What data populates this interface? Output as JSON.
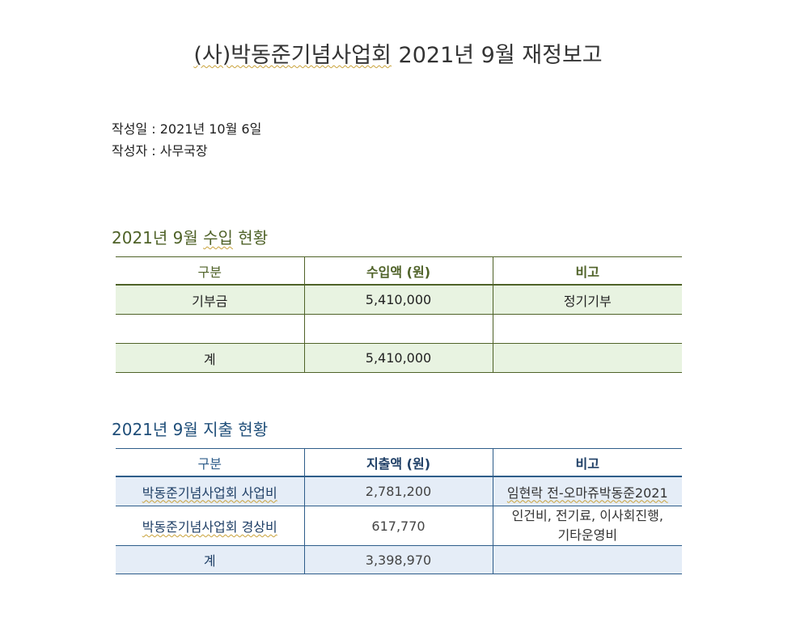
{
  "title": {
    "org": "(사)박동준기념사업회",
    "rest": " 2021년 9월 재정보고"
  },
  "meta": {
    "date_line": "작성일 : 2021년 10월 6일",
    "author_line": "작성자 : 사무국장"
  },
  "income": {
    "heading_pre": "2021년 9월 ",
    "heading_word": "수입",
    "heading_post": " 현황",
    "headers": [
      "구분",
      "수입액 (원)",
      "비고"
    ],
    "rows": [
      {
        "category": "기부금",
        "amount": "5,410,000",
        "note": "정기기부"
      },
      {
        "category": "",
        "amount": "",
        "note": ""
      }
    ],
    "total": {
      "label": "계",
      "amount": "5,410,000",
      "note": ""
    }
  },
  "expense": {
    "heading": "2021년 9월 지출 현황",
    "headers": [
      "구분",
      "지출액 (원)",
      "비고"
    ],
    "rows": [
      {
        "category": "박동준기념사업회 사업비",
        "amount": "2,781,200",
        "note": "임현락 전-오마쥬박동준2021",
        "note2": ""
      },
      {
        "category": "박동준기념사업회 경상비",
        "amount": "617,770",
        "note": "인건비, 전기료, 이사회진행,",
        "note2": "기타운영비"
      }
    ],
    "total": {
      "label": "계",
      "amount": "3,398,970",
      "note": ""
    }
  },
  "colors": {
    "income_accent": "#4f6228",
    "income_fill": "#e8f3e1",
    "expense_accent": "#1f4e79",
    "expense_fill": "#e5edf7"
  }
}
